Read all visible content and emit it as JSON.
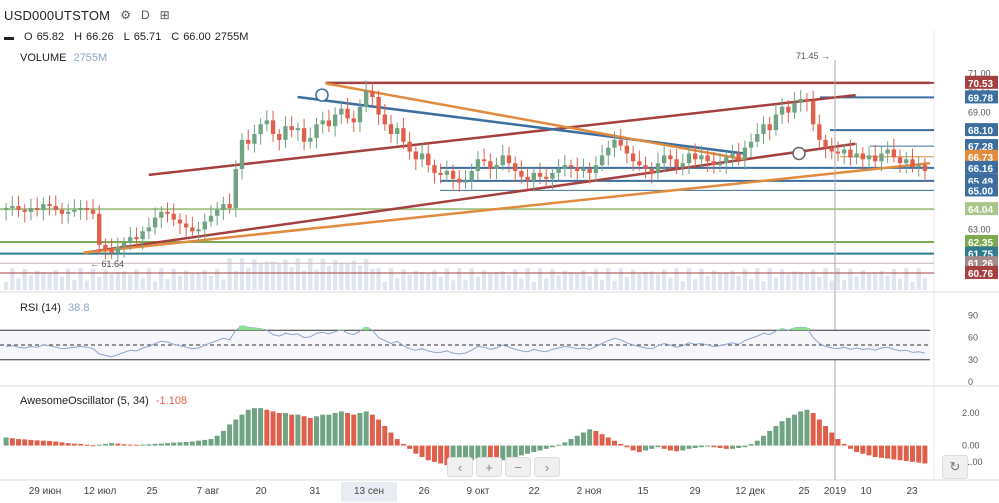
{
  "header": {
    "symbol": "USD000UTSTOM",
    "timeframe": "D",
    "icons": [
      "gear-icon",
      "timeframe",
      "compare-icon"
    ]
  },
  "ohlc": {
    "o_label": "O",
    "o": "65.82",
    "h_label": "H",
    "h": "66.26",
    "l_label": "L",
    "l": "65.71",
    "c_label": "C",
    "c": "66.00",
    "volume": "2755M"
  },
  "volume_label": {
    "name": "VOLUME",
    "value": "2755M"
  },
  "rsi_label": {
    "name": "RSI (14)",
    "value": "38.8"
  },
  "ao_label": {
    "name": "AwesomeOscillator (5, 34)",
    "value": "-1.108"
  },
  "annotations": {
    "high_marker": "71.45 →",
    "low_marker": "← 61.64"
  },
  "colors": {
    "up": "#6fa383",
    "down": "#e05f4a",
    "brown": "#a44040",
    "blue": "#3c6fa0",
    "orange": "#e08b3e",
    "olive": "#a8c68a",
    "green_level": "#7da94f",
    "teal": "#2f7b8f"
  },
  "nav": {
    "prev": "‹",
    "zoom_in": "+",
    "zoom_out": "−",
    "next": "›",
    "reset": "↻"
  },
  "chart_data": [
    {
      "type": "candlestick",
      "title": "USD000UTSTOM",
      "timeframe": "D",
      "price_axis": {
        "ticks": [
          "71.00",
          "70.00",
          "69.00",
          "68.00",
          "67.00",
          "66.00",
          "65.00",
          "64.00",
          "63.00",
          "62.00",
          "61.00"
        ],
        "range": [
          60.5,
          71.6
        ]
      },
      "price_badges": [
        {
          "value": "70.53",
          "color": "#a44040"
        },
        {
          "value": "69.78",
          "color": "#3c6fa0"
        },
        {
          "value": "68.10",
          "color": "#3c6fa0"
        },
        {
          "value": "67.28",
          "color": "#3c6fa0"
        },
        {
          "value": "66.73",
          "color": "#e08b3e"
        },
        {
          "value": "66.16",
          "color": "#3c6fa0"
        },
        {
          "value": "65.49",
          "color": "#3c6fa0"
        },
        {
          "value": "65.00",
          "color": "#3c6fa0"
        },
        {
          "value": "64.04",
          "color": "#a8c68a"
        },
        {
          "value": "62.35",
          "color": "#7da94f"
        },
        {
          "value": "61.75",
          "color": "#2f7b8f"
        },
        {
          "value": "61.26",
          "color": "#a58a8a"
        },
        {
          "value": "60.76",
          "color": "#a44040"
        }
      ],
      "x_axis_ticks": [
        "29 июн",
        "12 июл",
        "25",
        "7 авг",
        "20",
        "31",
        "13 сен",
        "26",
        "9 окт",
        "22",
        "2 ноя",
        "15",
        "29",
        "12 дек",
        "25",
        "2019",
        "10",
        "23"
      ],
      "x_axis_highlight": "13 сен",
      "closes": [
        64.1,
        64.2,
        64.0,
        63.9,
        64.1,
        64.0,
        64.3,
        64.2,
        64.0,
        63.8,
        63.9,
        64.0,
        64.1,
        64.0,
        63.8,
        62.2,
        62.0,
        61.8,
        62.1,
        62.3,
        62.6,
        62.5,
        62.9,
        63.1,
        63.6,
        63.9,
        63.8,
        63.5,
        63.3,
        63.1,
        62.9,
        63.0,
        63.4,
        63.7,
        64.0,
        64.3,
        64.1,
        66.1,
        67.6,
        67.4,
        67.9,
        68.4,
        68.6,
        67.9,
        67.6,
        68.3,
        68.1,
        68.2,
        67.5,
        67.7,
        68.4,
        68.6,
        68.3,
        68.9,
        69.2,
        68.7,
        68.5,
        69.3,
        70.1,
        69.8,
        68.9,
        68.4,
        67.9,
        68.2,
        67.5,
        67.0,
        66.6,
        66.9,
        66.3,
        65.9,
        65.8,
        66.0,
        65.6,
        65.4,
        65.5,
        66.0,
        66.6,
        66.5,
        66.1,
        66.3,
        66.8,
        66.4,
        66.0,
        65.7,
        65.5,
        65.9,
        65.7,
        65.6,
        65.9,
        66.1,
        66.3,
        66.2,
        66.0,
        66.1,
        65.9,
        66.3,
        66.8,
        67.2,
        67.6,
        67.3,
        66.9,
        66.5,
        66.3,
        66.1,
        65.9,
        66.4,
        66.8,
        66.6,
        66.2,
        66.4,
        66.9,
        66.6,
        66.8,
        66.5,
        66.3,
        66.4,
        66.7,
        66.9,
        66.6,
        67.2,
        67.5,
        67.9,
        68.4,
        68.1,
        68.9,
        69.3,
        69.0,
        69.5,
        69.7,
        69.6,
        68.4,
        67.6,
        67.2,
        67.0,
        66.9,
        67.1,
        66.7,
        66.9,
        66.6,
        66.8,
        66.5,
        66.9,
        67.1,
        66.7,
        66.4,
        66.6,
        66.2,
        66.3,
        66.0
      ],
      "overlays": [
        {
          "name": "horizontal resistance",
          "color": "#a44040",
          "from": [
            0.35,
            70.53
          ],
          "to": [
            1.0,
            70.53
          ]
        },
        {
          "name": "rising channel top",
          "color": "#a44040",
          "from": [
            0.16,
            65.8
          ],
          "to": [
            0.92,
            69.9
          ]
        },
        {
          "name": "rising channel bottom",
          "color": "#a44040",
          "from": [
            0.09,
            61.8
          ],
          "to": [
            0.92,
            67.4
          ]
        },
        {
          "name": "falling line",
          "color": "#3c6fa0",
          "from": [
            0.32,
            69.8
          ],
          "to": [
            0.8,
            66.9
          ]
        },
        {
          "name": "falling line orange",
          "color": "#e08b3e",
          "from": [
            0.35,
            70.5
          ],
          "to": [
            0.8,
            66.6
          ]
        },
        {
          "name": "rising orange",
          "color": "#e08b3e",
          "from": [
            0.09,
            61.8
          ],
          "to": [
            1.0,
            66.4
          ]
        }
      ]
    },
    {
      "type": "line",
      "title": "RSI (14)",
      "y_ticks": [
        90,
        60,
        30,
        0
      ],
      "levels": [
        70,
        50,
        30
      ],
      "values": [
        48,
        49,
        47,
        46,
        48,
        47,
        50,
        49,
        47,
        45,
        46,
        47,
        48,
        47,
        45,
        38,
        36,
        34,
        37,
        40,
        43,
        42,
        46,
        48,
        52,
        55,
        54,
        51,
        49,
        47,
        45,
        46,
        50,
        53,
        56,
        59,
        57,
        70,
        76,
        74,
        73,
        72,
        70,
        64,
        62,
        66,
        64,
        65,
        60,
        61,
        66,
        67,
        65,
        68,
        71,
        66,
        64,
        69,
        74,
        70,
        60,
        56,
        52,
        55,
        49,
        45,
        43,
        45,
        42,
        40,
        40,
        42,
        39,
        38,
        39,
        43,
        48,
        47,
        44,
        46,
        50,
        47,
        44,
        42,
        41,
        44,
        42,
        41,
        44,
        46,
        48,
        47,
        45,
        46,
        44,
        48,
        52,
        56,
        59,
        57,
        53,
        50,
        48,
        46,
        45,
        49,
        52,
        50,
        47,
        49,
        53,
        51,
        52,
        50,
        48,
        49,
        51,
        53,
        51,
        56,
        59,
        62,
        66,
        64,
        69,
        72,
        70,
        73,
        74,
        73,
        60,
        52,
        48,
        46,
        45,
        47,
        44,
        46,
        44,
        45,
        43,
        46,
        47,
        44,
        42,
        43,
        40,
        41,
        39
      ],
      "ylim": [
        0,
        100
      ]
    },
    {
      "type": "bar",
      "title": "AwesomeOscillator (5, 34)",
      "y_ticks": [
        "2.00",
        "0.00",
        "-1.00"
      ],
      "ylim": [
        -1.5,
        2.8
      ],
      "values": [
        0.5,
        0.45,
        0.4,
        0.38,
        0.35,
        0.32,
        0.3,
        0.28,
        0.25,
        0.2,
        0.15,
        0.12,
        0.1,
        0.05,
        0.02,
        0.05,
        0.1,
        0.15,
        0.12,
        0.08,
        0.06,
        0.05,
        0.06,
        0.08,
        0.1,
        0.12,
        0.15,
        0.18,
        0.2,
        0.22,
        0.25,
        0.3,
        0.35,
        0.4,
        0.6,
        0.9,
        1.3,
        1.6,
        1.9,
        2.2,
        2.3,
        2.3,
        2.2,
        2.1,
        2.0,
        2.0,
        1.9,
        1.9,
        1.8,
        1.7,
        1.8,
        1.9,
        1.9,
        2.0,
        2.1,
        2.0,
        1.9,
        2.0,
        2.1,
        1.9,
        1.6,
        1.2,
        0.8,
        0.4,
        0.1,
        -0.2,
        -0.5,
        -0.7,
        -0.9,
        -1.0,
        -1.1,
        -1.2,
        -1.2,
        -1.1,
        -1.0,
        -0.9,
        -0.8,
        -0.7,
        -0.8,
        -0.9,
        -0.9,
        -0.8,
        -0.7,
        -0.6,
        -0.5,
        -0.4,
        -0.3,
        -0.2,
        -0.1,
        0.05,
        0.2,
        0.4,
        0.6,
        0.8,
        1.0,
        0.9,
        0.7,
        0.5,
        0.3,
        0.1,
        -0.1,
        -0.3,
        -0.4,
        -0.3,
        -0.2,
        -0.1,
        -0.2,
        -0.3,
        -0.35,
        -0.3,
        -0.2,
        -0.15,
        -0.1,
        -0.05,
        -0.1,
        -0.15,
        -0.2,
        -0.2,
        -0.15,
        -0.1,
        0.1,
        0.3,
        0.6,
        0.9,
        1.2,
        1.5,
        1.7,
        1.9,
        2.1,
        2.2,
        2.0,
        1.6,
        1.2,
        0.8,
        0.4,
        0.1,
        -0.2,
        -0.4,
        -0.5,
        -0.6,
        -0.7,
        -0.75,
        -0.8,
        -0.85,
        -0.9,
        -0.95,
        -1.0,
        -1.05,
        -1.1
      ]
    }
  ]
}
